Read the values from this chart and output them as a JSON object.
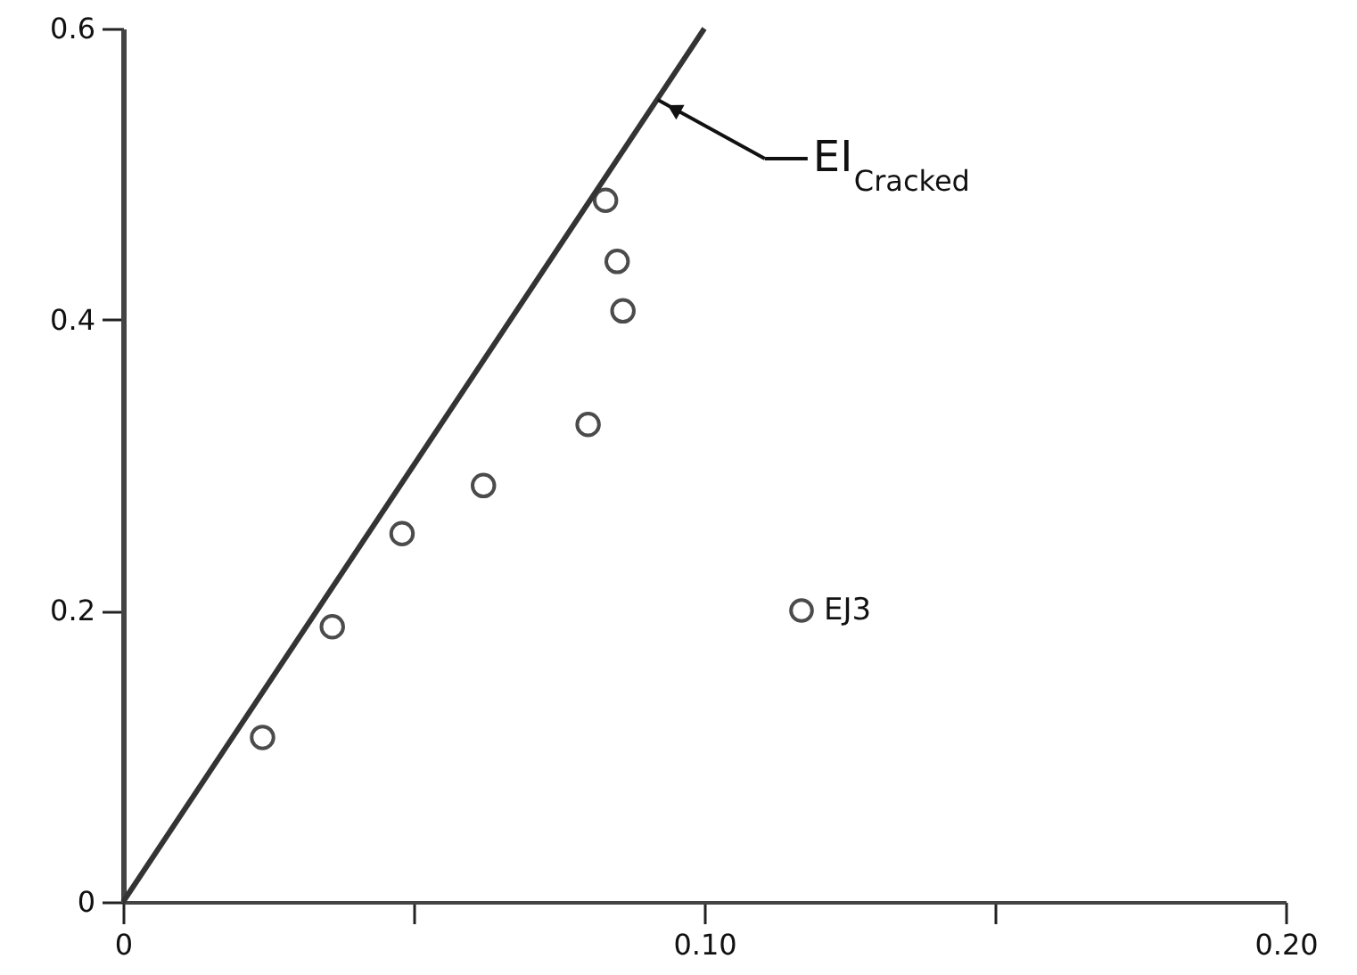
{
  "chart_data": {
    "type": "scatter",
    "xlim": [
      0,
      0.2
    ],
    "ylim": [
      0,
      0.6
    ],
    "xticks": [
      0,
      {
        "value": 0.05,
        "label": null
      },
      {
        "value": 0.1,
        "label": "0.10"
      },
      {
        "value": 0.15,
        "label": null
      },
      {
        "value": 0.2,
        "label": "0.20"
      }
    ],
    "yticks": [
      0,
      0.2,
      0.4,
      0.6
    ],
    "grid": false,
    "legend": "right",
    "marker": "circle",
    "series": [
      {
        "name": "EJ3",
        "color": "#000000",
        "x": [
          0.024,
          0.036,
          0.048,
          0.062,
          0.08,
          0.083,
          0.085,
          0.086
        ],
        "values": [
          0.113,
          0.189,
          0.253,
          0.286,
          0.328,
          0.482,
          0.44,
          0.406
        ]
      },
      {
        "type": "line",
        "color": "#333333",
        "line_style": "solid",
        "marker": "none",
        "x": [
          0,
          0.1
        ],
        "values": [
          0,
          0.6
        ]
      }
    ],
    "annotations": [
      {
        "text": "EI$_{Cracked}$",
        "x": 0.092,
        "y": 0.551
      }
    ]
  }
}
